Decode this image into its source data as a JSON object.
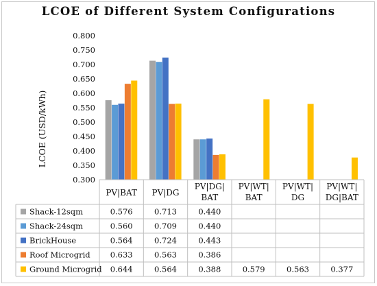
{
  "chart_data": {
    "type": "bar",
    "title": "LCOE of Different System Configurations",
    "ylabel": "LCOE (USD/kWh)",
    "xlabel": "",
    "ylim": [
      0.3,
      0.8
    ],
    "yticks": [
      "0.300",
      "0.350",
      "0.400",
      "0.450",
      "0.500",
      "0.550",
      "0.600",
      "0.650",
      "0.700",
      "0.750",
      "0.800"
    ],
    "grid": false,
    "legend": "data-table",
    "categories": [
      [
        "PV|BAT"
      ],
      [
        "PV|DG"
      ],
      [
        "PV|DG|",
        "BAT"
      ],
      [
        "PV|WT|",
        "BAT"
      ],
      [
        "PV|WT|",
        "DG"
      ],
      [
        "PV|WT|",
        "DG|BAT"
      ]
    ],
    "series": [
      {
        "name": "Shack-12sqm",
        "color": "#a5a5a5",
        "values": [
          0.576,
          0.713,
          0.44,
          null,
          null,
          null
        ],
        "labels": [
          "0.576",
          "0.713",
          "0.440",
          "",
          "",
          ""
        ]
      },
      {
        "name": "Shack-24sqm",
        "color": "#5b9bd5",
        "values": [
          0.56,
          0.709,
          0.44,
          null,
          null,
          null
        ],
        "labels": [
          "0.560",
          "0.709",
          "0.440",
          "",
          "",
          ""
        ]
      },
      {
        "name": "BrickHouse",
        "color": "#4472c4",
        "values": [
          0.564,
          0.724,
          0.443,
          null,
          null,
          null
        ],
        "labels": [
          "0.564",
          "0.724",
          "0.443",
          "",
          "",
          ""
        ]
      },
      {
        "name": "Roof Microgrid",
        "color": "#ed7d31",
        "values": [
          0.633,
          0.563,
          0.386,
          null,
          null,
          null
        ],
        "labels": [
          "0.633",
          "0.563",
          "0.386",
          "",
          "",
          ""
        ]
      },
      {
        "name": "Ground Microgrid",
        "color": "#ffc000",
        "values": [
          0.644,
          0.564,
          0.388,
          0.579,
          0.563,
          0.377
        ],
        "labels": [
          "0.644",
          "0.564",
          "0.388",
          "0.579",
          "0.563",
          "0.377"
        ]
      }
    ]
  }
}
